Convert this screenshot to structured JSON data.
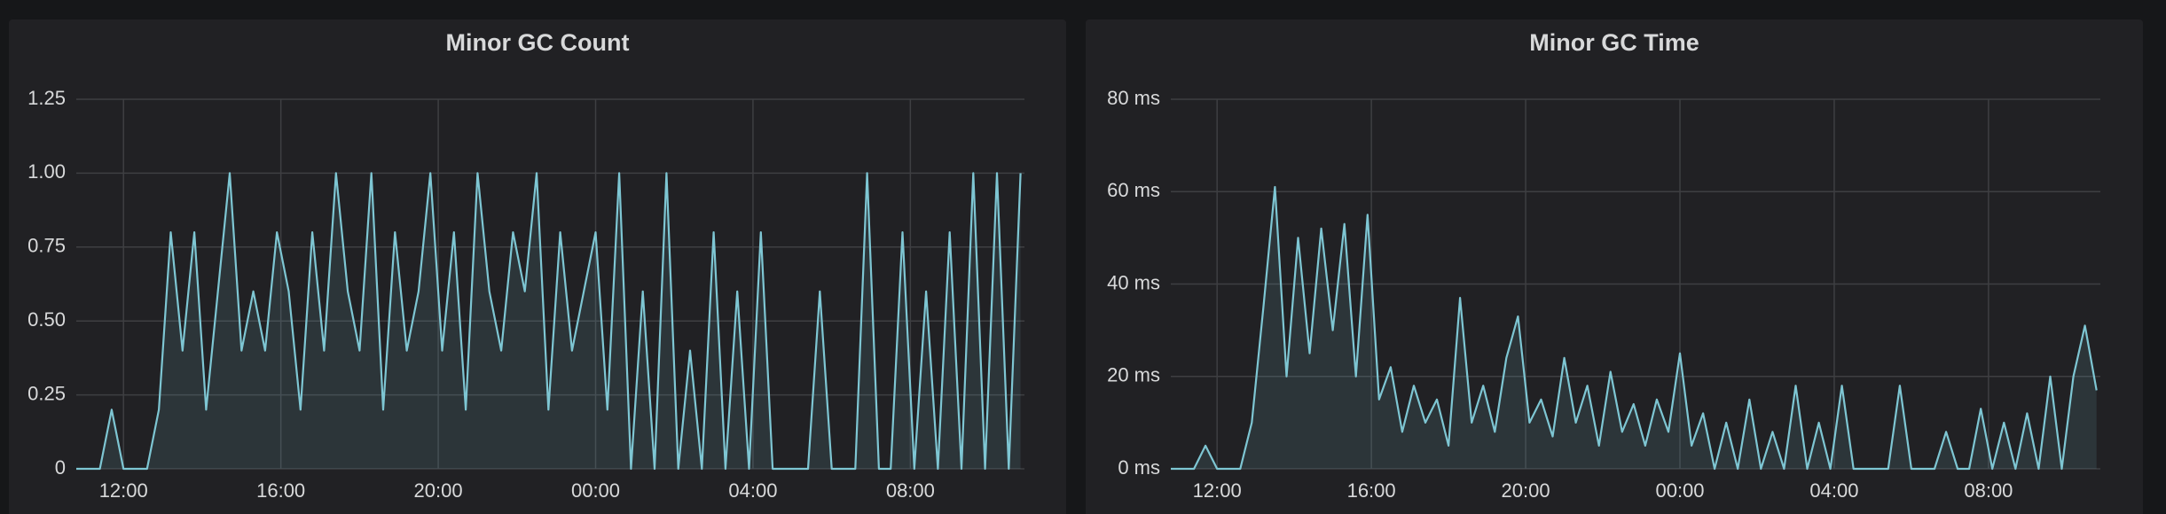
{
  "chart_data": [
    {
      "type": "line",
      "title": "Minor GC Count",
      "x": [
        10.8,
        11.1,
        11.4,
        11.7,
        12.0,
        12.3,
        12.6,
        12.9,
        13.2,
        13.5,
        13.8,
        14.1,
        14.4,
        14.7,
        15.0,
        15.3,
        15.6,
        15.9,
        16.2,
        16.5,
        16.8,
        17.1,
        17.4,
        17.7,
        18.0,
        18.3,
        18.6,
        18.9,
        19.2,
        19.5,
        19.8,
        20.1,
        20.4,
        20.7,
        21.0,
        21.3,
        21.6,
        21.9,
        22.2,
        22.5,
        22.8,
        23.1,
        23.4,
        23.7,
        24.0,
        24.3,
        24.6,
        24.9,
        25.2,
        25.5,
        25.8,
        26.1,
        26.4,
        26.7,
        27.0,
        27.3,
        27.6,
        27.9,
        28.2,
        28.5,
        28.8,
        29.1,
        29.4,
        29.7,
        30.0,
        30.3,
        30.6,
        30.9,
        31.2,
        31.5,
        31.8,
        32.1,
        32.4,
        32.7,
        33.0,
        33.3,
        33.6,
        33.9,
        34.2,
        34.5,
        34.8
      ],
      "series": [
        {
          "name": "count",
          "color": "#7ec6d3",
          "values": [
            0,
            0,
            0,
            0.2,
            0,
            0,
            0,
            0.2,
            0.8,
            0.4,
            0.8,
            0.2,
            0.6,
            1,
            0.4,
            0.6,
            0.4,
            0.8,
            0.6,
            0.2,
            0.8,
            0.4,
            1,
            0.6,
            0.4,
            1,
            0.2,
            0.8,
            0.4,
            0.6,
            1,
            0.4,
            0.8,
            0.2,
            1,
            0.6,
            0.4,
            0.8,
            0.6,
            1,
            0.2,
            0.8,
            0.4,
            0.6,
            0.8,
            0.2,
            1,
            0,
            0.6,
            0,
            1,
            0,
            0.4,
            0,
            0.8,
            0,
            0.6,
            0,
            0.8,
            0,
            0,
            0,
            0,
            0.6,
            0,
            0,
            0,
            1,
            0,
            0,
            0.8,
            0,
            0.6,
            0,
            0.8,
            0,
            1,
            0,
            1,
            0,
            1
          ]
        }
      ],
      "xlim": [
        10.8,
        34.9
      ],
      "xticks": [
        {
          "value": 12,
          "label": "12:00"
        },
        {
          "value": 16,
          "label": "16:00"
        },
        {
          "value": 20,
          "label": "20:00"
        },
        {
          "value": 24,
          "label": "00:00"
        },
        {
          "value": 28,
          "label": "04:00"
        },
        {
          "value": 32,
          "label": "08:00"
        }
      ],
      "ylim": [
        0,
        1.25
      ],
      "yticks": [
        0,
        0.25,
        {
          "value": 0.5,
          "label": "0.50"
        },
        0.75,
        {
          "value": 1,
          "label": "1.00"
        },
        1.25
      ],
      "grid": true
    },
    {
      "type": "line",
      "title": "Minor GC Time",
      "x": [
        10.8,
        11.1,
        11.4,
        11.7,
        12.0,
        12.3,
        12.6,
        12.9,
        13.2,
        13.5,
        13.8,
        14.1,
        14.4,
        14.7,
        15.0,
        15.3,
        15.6,
        15.9,
        16.2,
        16.5,
        16.8,
        17.1,
        17.4,
        17.7,
        18.0,
        18.3,
        18.6,
        18.9,
        19.2,
        19.5,
        19.8,
        20.1,
        20.4,
        20.7,
        21.0,
        21.3,
        21.6,
        21.9,
        22.2,
        22.5,
        22.8,
        23.1,
        23.4,
        23.7,
        24.0,
        24.3,
        24.6,
        24.9,
        25.2,
        25.5,
        25.8,
        26.1,
        26.4,
        26.7,
        27.0,
        27.3,
        27.6,
        27.9,
        28.2,
        28.5,
        28.8,
        29.1,
        29.4,
        29.7,
        30.0,
        30.3,
        30.6,
        30.9,
        31.2,
        31.5,
        31.8,
        32.1,
        32.4,
        32.7,
        33.0,
        33.3,
        33.6,
        33.9,
        34.2,
        34.5,
        34.8
      ],
      "series": [
        {
          "name": "time",
          "color": "#7ec6d3",
          "values": [
            0,
            0,
            0,
            5,
            0,
            0,
            0,
            10,
            35,
            61,
            20,
            50,
            25,
            52,
            30,
            53,
            20,
            55,
            15,
            22,
            8,
            18,
            10,
            15,
            5,
            37,
            10,
            18,
            8,
            24,
            33,
            10,
            15,
            7,
            24,
            10,
            18,
            5,
            21,
            8,
            14,
            5,
            15,
            8,
            25,
            5,
            12,
            0,
            10,
            0,
            15,
            0,
            8,
            0,
            18,
            0,
            10,
            0,
            18,
            0,
            0,
            0,
            0,
            18,
            0,
            0,
            0,
            8,
            0,
            0,
            13,
            0,
            10,
            0,
            12,
            0,
            20,
            0,
            20,
            31,
            17
          ]
        }
      ],
      "xlim": [
        10.8,
        34.9
      ],
      "xticks": [
        {
          "value": 12,
          "label": "12:00"
        },
        {
          "value": 16,
          "label": "16:00"
        },
        {
          "value": 20,
          "label": "20:00"
        },
        {
          "value": 24,
          "label": "00:00"
        },
        {
          "value": 28,
          "label": "04:00"
        },
        {
          "value": 32,
          "label": "08:00"
        }
      ],
      "ylim": [
        0,
        80
      ],
      "yticks": [
        {
          "value": 0,
          "label": "0 ms"
        },
        {
          "value": 20,
          "label": "20 ms"
        },
        {
          "value": 40,
          "label": "40 ms"
        },
        {
          "value": 60,
          "label": "60 ms"
        },
        {
          "value": 80,
          "label": "80 ms"
        }
      ],
      "grid": true
    }
  ]
}
